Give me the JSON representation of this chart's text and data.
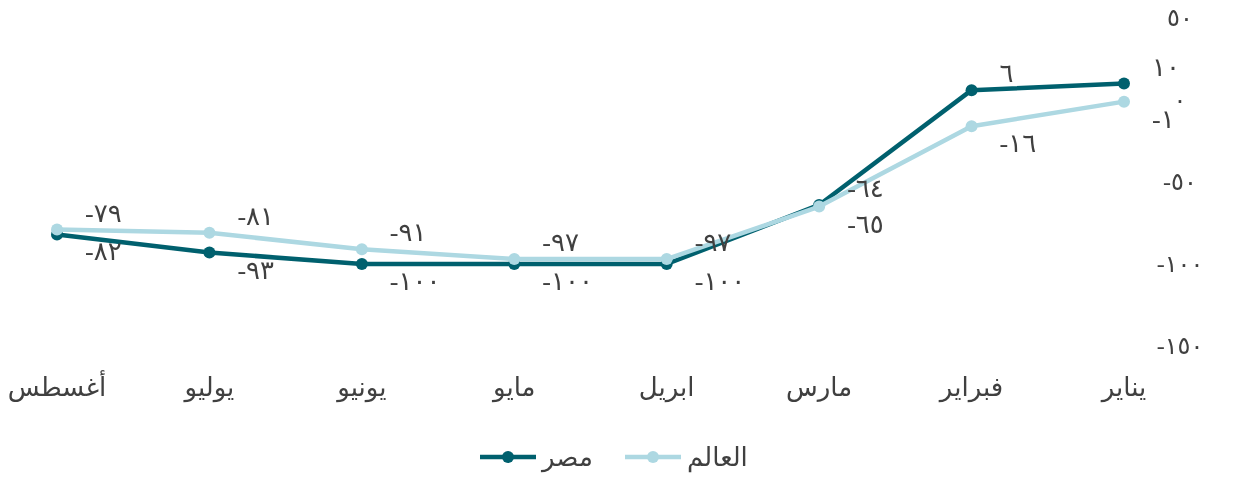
{
  "chart_data": {
    "type": "line",
    "categories": [
      "أغسطس",
      "يوليو",
      "يونيو",
      "مايو",
      "ابريل",
      "مارس",
      "فبراير",
      "يناير"
    ],
    "series": [
      {
        "name": "مصر",
        "color": "#00606e",
        "values": [
          -82,
          -93,
          -100,
          -100,
          -100,
          -64,
          6,
          10
        ],
        "value_labels": [
          "-٨٢",
          "-٩٣",
          "-١٠٠",
          "-١٠٠",
          "-١٠٠",
          "-٦٤",
          "٦",
          "١٠"
        ]
      },
      {
        "name": "العالم",
        "color": "#add8e2",
        "values": [
          -79,
          -81,
          -91,
          -97,
          -97,
          -65,
          -16,
          -1
        ],
        "value_labels": [
          "-٧٩",
          "-٨١",
          "-٩١",
          "-٩٧",
          "-٩٧",
          "-٦٥",
          "-١٦",
          "-١"
        ]
      }
    ],
    "ylim": [
      -150,
      50
    ],
    "yticks": [
      {
        "value": 50,
        "label": "٥٠"
      },
      {
        "value": 0,
        "label": "٠"
      },
      {
        "value": -50,
        "label": "-٥٠"
      },
      {
        "value": -100,
        "label": "-١٠٠"
      },
      {
        "value": -150,
        "label": "-١٥٠"
      }
    ],
    "marker": "circle",
    "legend": "bottom",
    "grid": false
  }
}
